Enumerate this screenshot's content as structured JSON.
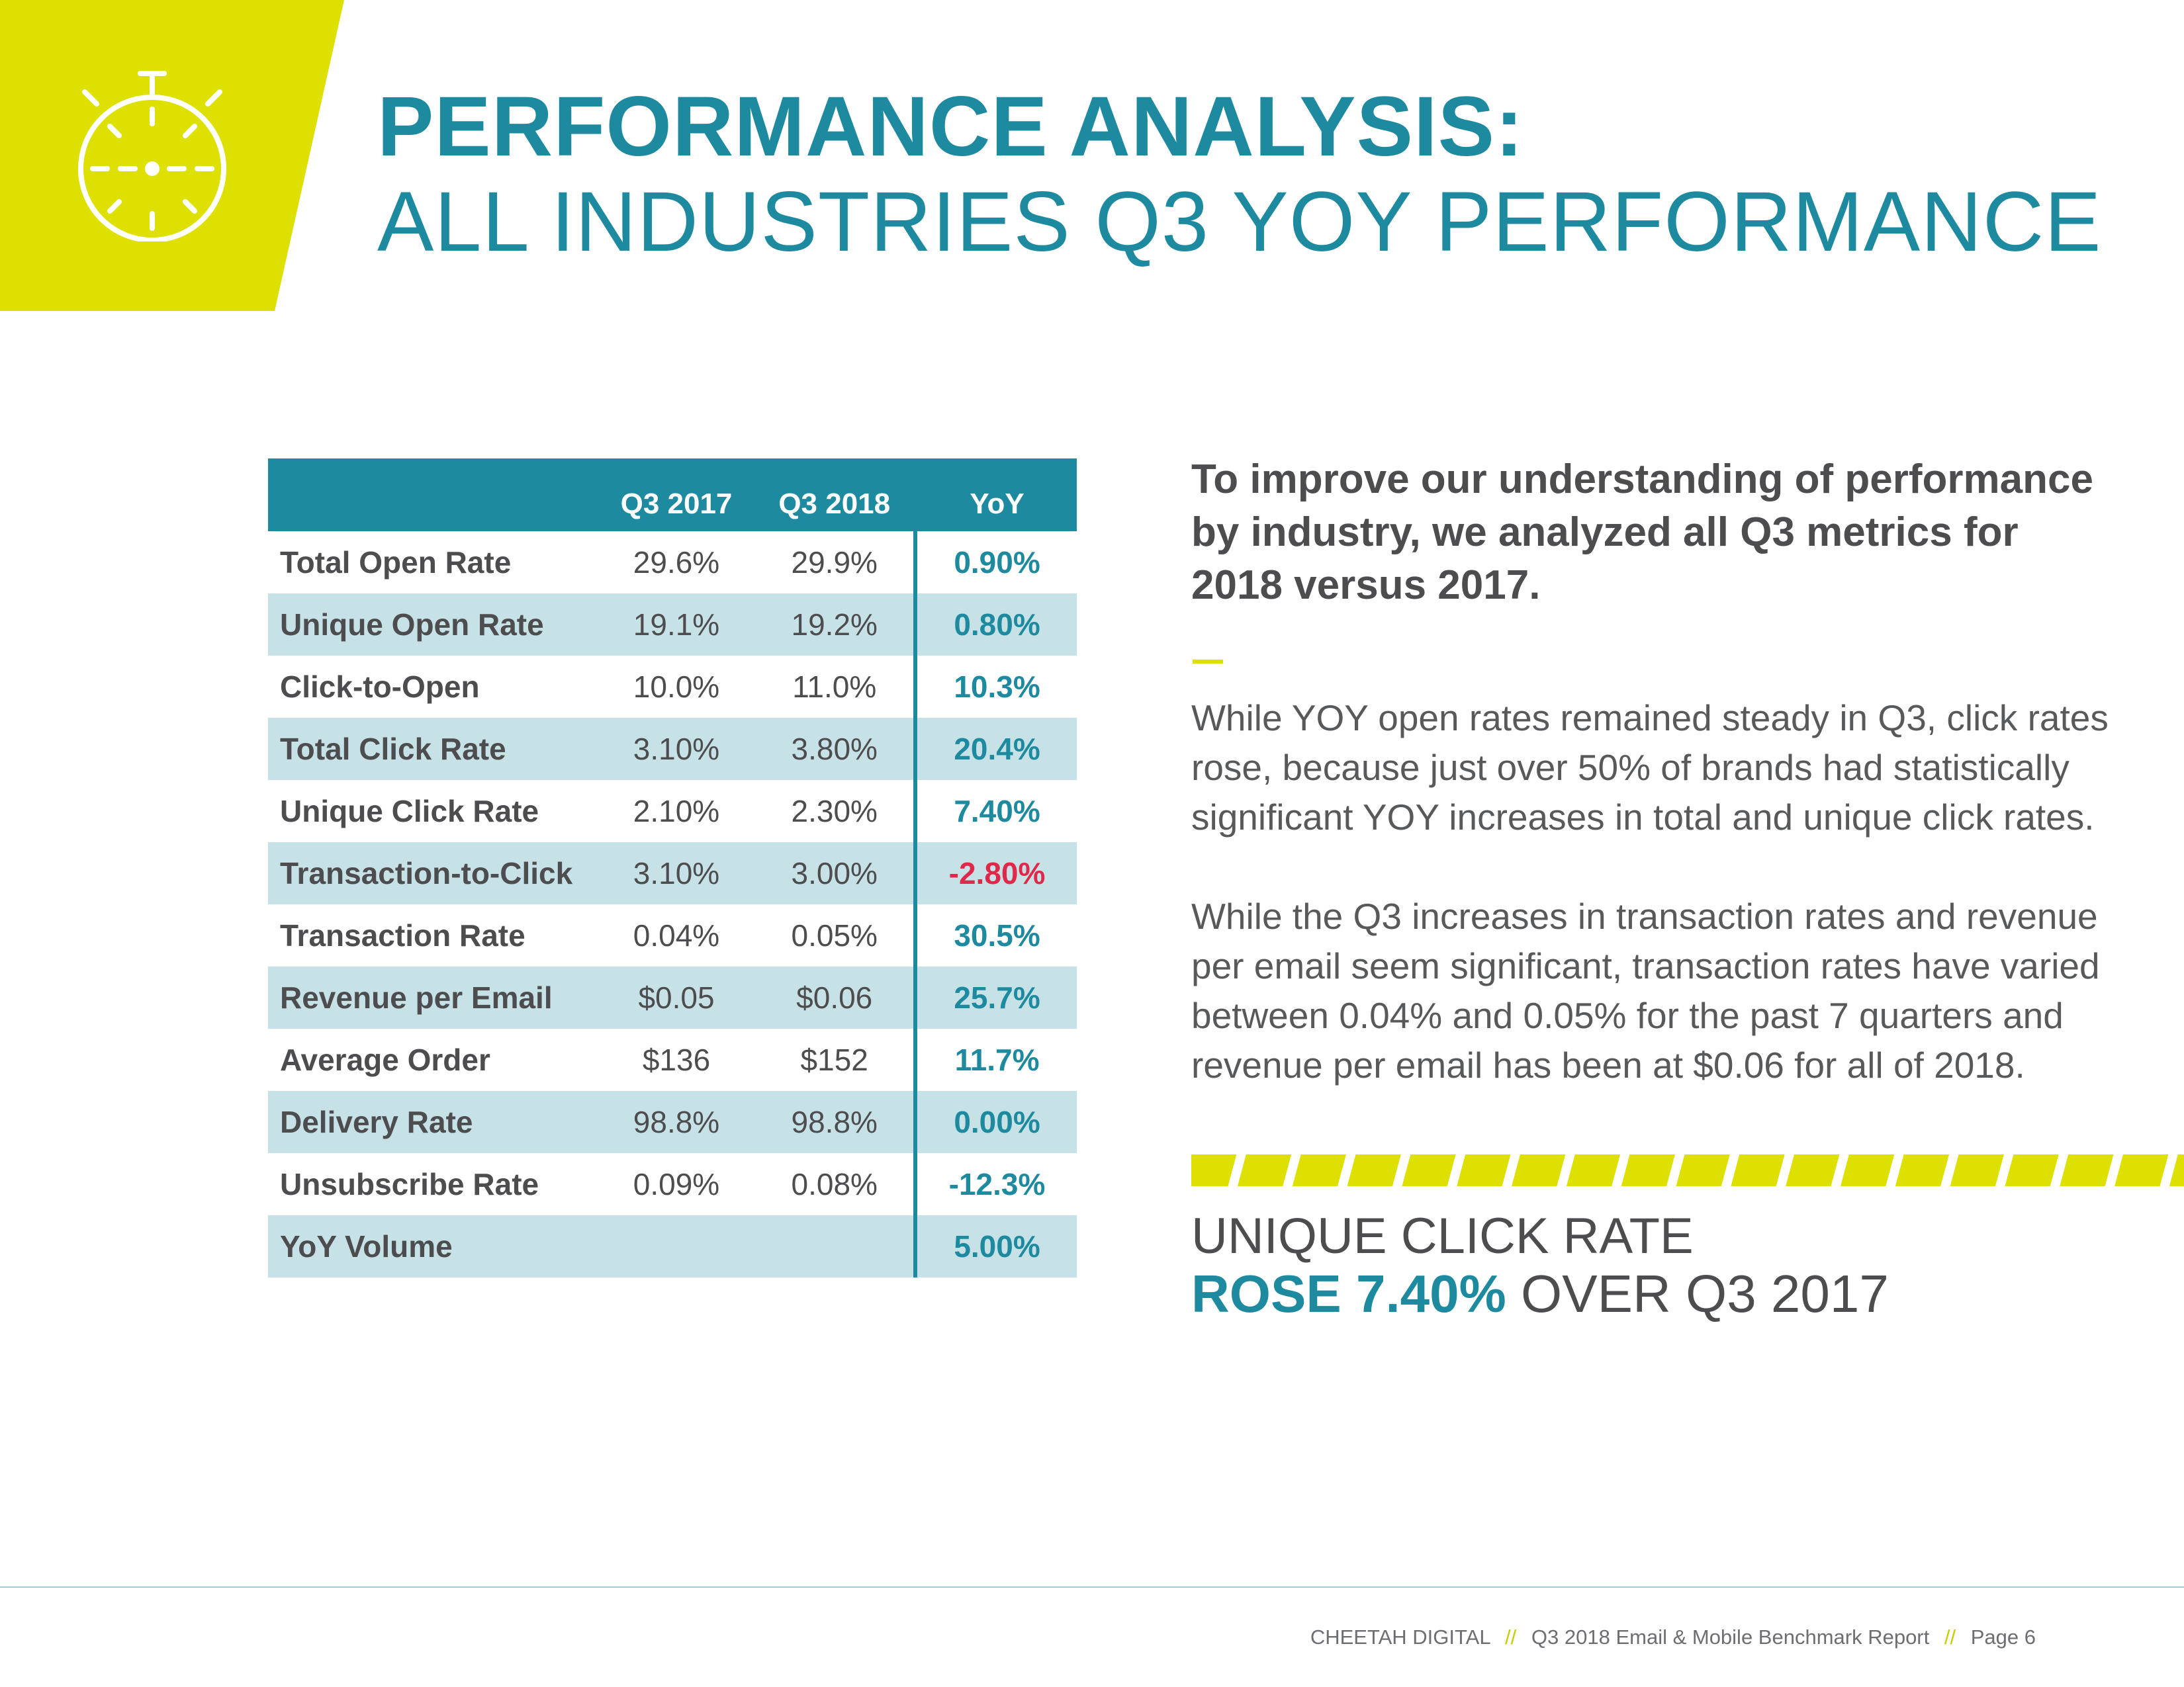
{
  "header": {
    "title_bold": "PERFORMANCE ANALYSIS:",
    "title_light": "ALL INDUSTRIES Q3 YOY PERFORMANCE",
    "icon": "stopwatch-icon",
    "accent_color": "#dde000",
    "brand_color": "#1e8a9f"
  },
  "table": {
    "columns": [
      "",
      "Q3 2017",
      "Q3 2018",
      "YoY"
    ],
    "rows": [
      {
        "label": "Total Open Rate",
        "q3_2017": "29.6%",
        "q3_2018": "29.9%",
        "yoy": "0.90%"
      },
      {
        "label": "Unique Open Rate",
        "q3_2017": "19.1%",
        "q3_2018": "19.2%",
        "yoy": "0.80%"
      },
      {
        "label": "Click-to-Open",
        "q3_2017": "10.0%",
        "q3_2018": "11.0%",
        "yoy": "10.3%"
      },
      {
        "label": "Total Click Rate",
        "q3_2017": "3.10%",
        "q3_2018": "3.80%",
        "yoy": "20.4%"
      },
      {
        "label": "Unique Click Rate",
        "q3_2017": "2.10%",
        "q3_2018": "2.30%",
        "yoy": "7.40%"
      },
      {
        "label": "Transaction-to-Click",
        "q3_2017": "3.10%",
        "q3_2018": "3.00%",
        "yoy": "-2.80%"
      },
      {
        "label": "Transaction Rate",
        "q3_2017": "0.04%",
        "q3_2018": "0.05%",
        "yoy": "30.5%"
      },
      {
        "label": "Revenue per Email",
        "q3_2017": "$0.05",
        "q3_2018": "$0.06",
        "yoy": "25.7%"
      },
      {
        "label": "Average Order",
        "q3_2017": "$136",
        "q3_2018": "$152",
        "yoy": "11.7%"
      },
      {
        "label": "Delivery Rate",
        "q3_2017": "98.8%",
        "q3_2018": "98.8%",
        "yoy": "0.00%"
      },
      {
        "label": "Unsubscribe Rate",
        "q3_2017": "0.09%",
        "q3_2018": "0.08%",
        "yoy": "-12.3%"
      },
      {
        "label": "YoY Volume",
        "q3_2017": "",
        "q3_2018": "",
        "yoy": "5.00%"
      }
    ],
    "negative_highlight_color": "#e0294a"
  },
  "intro": "To improve our understanding of performance by industry, we analyzed all Q3 metrics for 2018 versus 2017.",
  "paragraphs": [
    "While YOY open rates remained steady in Q3, click rates rose, because just over 50% of brands had statistically significant YOY increases in total and unique click rates.",
    "While the Q3 increases in transaction rates and revenue per email seem significant, transaction rates have varied between 0.04% and 0.05% for the past 7 quarters and revenue per email has been at $0.06 for all of 2018."
  ],
  "callout": {
    "line1": "UNIQUE CLICK RATE",
    "highlight": "ROSE 7.40%",
    "rest": "OVER Q3 2017"
  },
  "footer": {
    "company": "CHEETAH DIGITAL",
    "separator": "//",
    "report": "Q3 2018 Email & Mobile Benchmark Report",
    "page": "Page 6"
  }
}
